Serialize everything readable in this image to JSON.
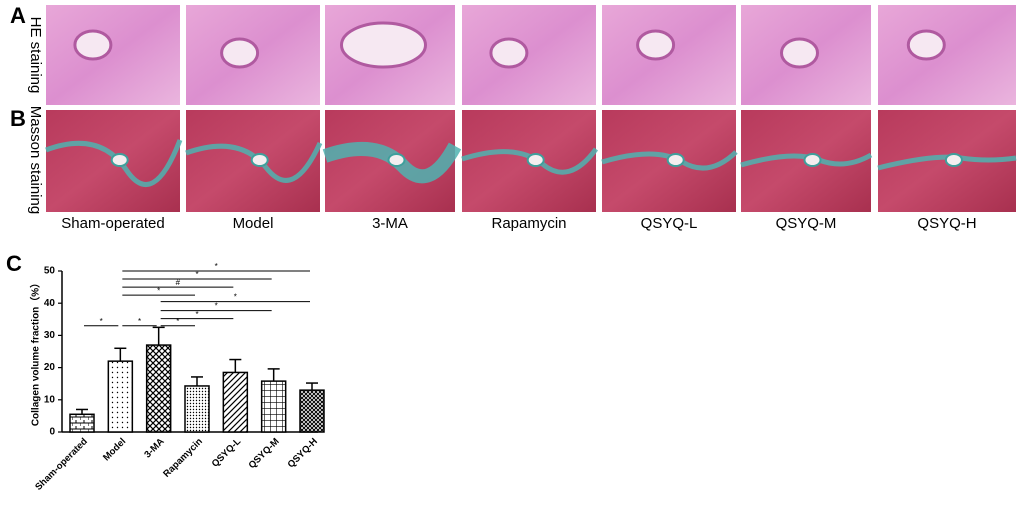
{
  "panels": [
    {
      "label": "A",
      "row_label": "HE staining"
    },
    {
      "label": "B",
      "row_label": "Masson staining"
    }
  ],
  "group_labels": [
    "Sham-operated",
    "Model",
    "3-MA",
    "Rapamycin",
    "QSYQ-L",
    "QSYQ-M",
    "QSYQ-H"
  ],
  "chart_data": {
    "type": "bar",
    "panel_label": "C",
    "y_label": "Collagen volume fraction（%）",
    "categories": [
      "Sham-operated",
      "Model",
      "3-MA",
      "Rapamycin",
      "QSYQ-L",
      "QSYQ-M",
      "QSYQ-H"
    ],
    "values": [
      5.5,
      22,
      27,
      14.3,
      18.5,
      15.8,
      13
    ],
    "errors": [
      1.5,
      4,
      5.5,
      2.8,
      4,
      3.8,
      2.2
    ],
    "patterns": [
      "bricks",
      "dots",
      "crosshatch",
      "fine-dots",
      "diagonal",
      "grid",
      "fine-crosshatch"
    ],
    "color": "#000000",
    "ylim": [
      0,
      50
    ],
    "yticks": [
      0,
      10,
      20,
      30,
      40,
      50
    ],
    "annotations": [
      {
        "text": "*",
        "between": [
          1,
          6
        ],
        "y": 50
      },
      {
        "text": "*",
        "between": [
          1,
          5
        ],
        "y": 47.5
      },
      {
        "text": "#",
        "between": [
          1,
          4
        ],
        "y": 45
      },
      {
        "text": "*",
        "between": [
          1,
          3
        ],
        "y": 42.5
      },
      {
        "text": "*",
        "between": [
          2,
          6
        ],
        "y": 40.5
      },
      {
        "text": "*",
        "between": [
          2,
          5
        ],
        "y": 37.7
      },
      {
        "text": "*",
        "between": [
          2,
          4
        ],
        "y": 35.2
      },
      {
        "text": "*",
        "between": [
          0,
          1
        ],
        "y": 33
      },
      {
        "text": "*",
        "between": [
          1,
          2
        ],
        "y": 33
      },
      {
        "text": "*",
        "between": [
          2,
          3
        ],
        "y": 33
      }
    ]
  }
}
